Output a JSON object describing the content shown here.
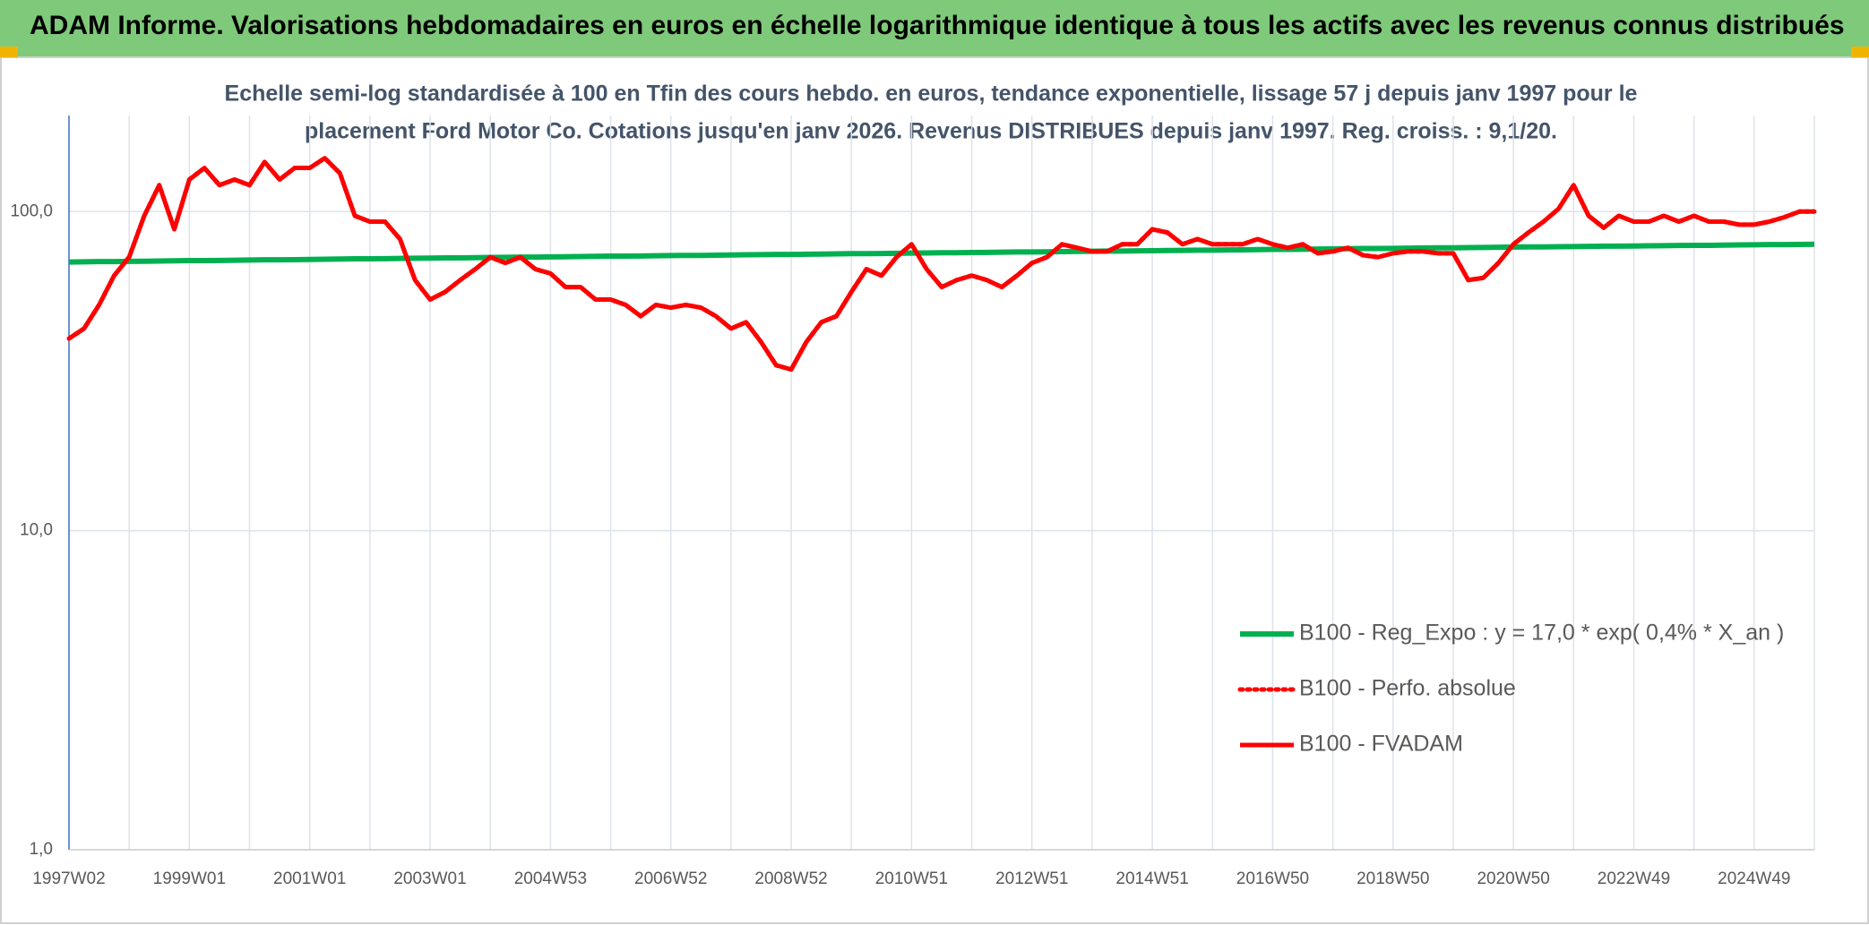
{
  "chart_data": {
    "type": "line",
    "title": "ADAM Informe. Valorisations hebdomadaires en euros en échelle logarithmique identique à tous les actifs avec les revenus connus distribués",
    "subtitle": [
      "Echelle semi-log standardisée à 100 en Tfin des cours hebdo. en euros, tendance exponentielle, lissage 57 j depuis janv 1997 pour le",
      "placement Ford Motor Co. Cotations jusqu'en janv 2026. Revenus DISTRIBUES depuis janv 1997. Reg. croiss. : 9,1/20."
    ],
    "categories": [
      "1997W02",
      null,
      null,
      null,
      null,
      null,
      null,
      null,
      "1999W01",
      null,
      null,
      null,
      null,
      null,
      null,
      null,
      "2001W01",
      null,
      null,
      null,
      null,
      null,
      null,
      null,
      "2003W01",
      null,
      null,
      null,
      null,
      null,
      null,
      null,
      "2004W53",
      null,
      null,
      null,
      null,
      null,
      null,
      null,
      "2006W52",
      null,
      null,
      null,
      null,
      null,
      null,
      null,
      "2008W52",
      null,
      null,
      null,
      null,
      null,
      null,
      null,
      "2010W51",
      null,
      null,
      null,
      null,
      null,
      null,
      null,
      "2012W51",
      null,
      null,
      null,
      null,
      null,
      null,
      null,
      "2014W51",
      null,
      null,
      null,
      null,
      null,
      null,
      null,
      "2016W50",
      null,
      null,
      null,
      null,
      null,
      null,
      null,
      "2018W50",
      null,
      null,
      null,
      null,
      null,
      null,
      null,
      "2020W50",
      null,
      null,
      null,
      null,
      null,
      null,
      null,
      "2022W49",
      null,
      null,
      null,
      null,
      null,
      null,
      null,
      "2024W49",
      null,
      null,
      null,
      null
    ],
    "series": [
      {
        "name": "B100 - Reg_Expo : y = 17,0 * exp( 0,4% *  X_an )",
        "color": "#00b050",
        "dash": "solid",
        "values": [
          69.5,
          69.6,
          69.7,
          69.7,
          69.8,
          69.9,
          70.0,
          70.1,
          70.2,
          70.2,
          70.3,
          70.4,
          70.5,
          70.6,
          70.6,
          70.7,
          70.8,
          70.9,
          71.0,
          71.1,
          71.1,
          71.2,
          71.3,
          71.4,
          71.5,
          71.6,
          71.6,
          71.7,
          71.8,
          71.9,
          72.0,
          72.0,
          72.1,
          72.2,
          72.3,
          72.4,
          72.5,
          72.5,
          72.6,
          72.7,
          72.8,
          72.9,
          72.9,
          73.0,
          73.1,
          73.2,
          73.3,
          73.4,
          73.4,
          73.5,
          73.6,
          73.7,
          73.8,
          73.8,
          73.9,
          74.0,
          74.1,
          74.2,
          74.3,
          74.3,
          74.4,
          74.5,
          74.6,
          74.7,
          74.7,
          74.8,
          74.9,
          75.0,
          75.1,
          75.2,
          75.2,
          75.3,
          75.4,
          75.5,
          75.6,
          75.7,
          75.7,
          75.8,
          75.9,
          76.0,
          76.1,
          76.1,
          76.2,
          76.3,
          76.4,
          76.5,
          76.6,
          76.6,
          76.7,
          76.8,
          76.9,
          77.0,
          77.0,
          77.1,
          77.2,
          77.3,
          77.4,
          77.5,
          77.5,
          77.6,
          77.7,
          77.8,
          77.9,
          77.9,
          78.0,
          78.1,
          78.2,
          78.3,
          78.4,
          78.4,
          78.5,
          78.6,
          78.7,
          78.8,
          78.8,
          78.9,
          79.0
        ]
      },
      {
        "name": "B100 - Perfo. absolue",
        "color": "#ff0000",
        "dash": "dotted",
        "values": [
          40,
          43,
          51,
          63,
          72,
          97,
          121,
          88,
          126,
          137,
          121,
          126,
          121,
          143,
          126,
          137,
          137,
          147,
          132,
          97,
          93,
          93,
          82,
          61,
          53,
          56,
          61,
          66,
          72,
          69,
          72,
          66,
          64,
          58,
          58,
          53,
          53,
          51,
          47,
          51,
          50,
          51,
          50,
          47,
          43,
          45,
          39,
          33,
          32,
          39,
          45,
          47,
          56,
          66,
          63,
          72,
          79,
          66,
          58,
          61,
          63,
          61,
          58,
          63,
          69,
          72,
          79,
          77,
          75,
          75,
          79,
          79,
          88,
          86,
          79,
          82,
          79,
          79,
          79,
          82,
          79,
          77,
          79,
          74,
          75,
          77,
          73,
          72,
          74,
          75,
          75,
          74,
          74,
          61,
          62,
          69,
          79,
          86,
          93,
          102,
          121,
          97,
          89,
          97,
          93,
          93,
          97,
          93,
          97,
          93,
          93,
          91,
          91,
          93,
          96,
          100,
          100
        ]
      },
      {
        "name": "B100 - FVADAM",
        "color": "#ff0000",
        "dash": "solid",
        "values": [
          40,
          43,
          51,
          63,
          72,
          97,
          121,
          88,
          126,
          137,
          121,
          126,
          121,
          143,
          126,
          137,
          137,
          147,
          132,
          97,
          93,
          93,
          82,
          61,
          53,
          56,
          61,
          66,
          72,
          69,
          72,
          66,
          64,
          58,
          58,
          53,
          53,
          51,
          47,
          51,
          50,
          51,
          50,
          47,
          43,
          45,
          39,
          33,
          32,
          39,
          45,
          47,
          56,
          66,
          63,
          72,
          79,
          66,
          58,
          61,
          63,
          61,
          58,
          63,
          69,
          72,
          79,
          77,
          75,
          75,
          79,
          79,
          88,
          86,
          79,
          82,
          79,
          79,
          79,
          82,
          79,
          77,
          79,
          74,
          75,
          77,
          73,
          72,
          74,
          75,
          75,
          74,
          74,
          61,
          62,
          69,
          79,
          86,
          93,
          102,
          121,
          97,
          89,
          97,
          93,
          93,
          97,
          93,
          97,
          93,
          93,
          91,
          91,
          93,
          96,
          100,
          100
        ]
      }
    ],
    "ylim": [
      1,
      200
    ],
    "yticks": [
      {
        "value": 1,
        "label": "1,0"
      },
      {
        "value": 10,
        "label": "10,0"
      },
      {
        "value": 100,
        "label": "100,0"
      }
    ],
    "log_scale": true,
    "grid": true,
    "legend": "lower right"
  }
}
